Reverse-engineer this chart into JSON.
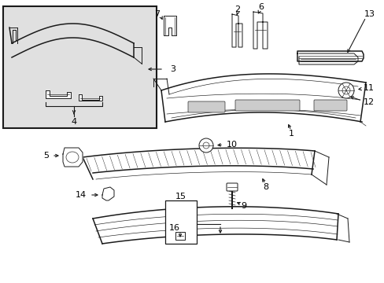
{
  "bg_color": "#ffffff",
  "inset_bg": "#e8e8e8",
  "line_color": "#1a1a1a",
  "label_color": "#000000",
  "lw_main": 1.1,
  "lw_thin": 0.7,
  "lw_fine": 0.45
}
